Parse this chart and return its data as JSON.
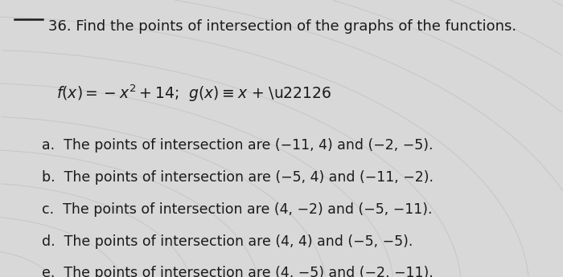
{
  "question_number": "36.",
  "question_text": " Find the points of intersection of the graphs of the functions.",
  "func_f": "$f(x) = -x^2 + 14$",
  "func_sep": ";",
  "func_g": "$g(x) \\equiv x$ + −6",
  "options": [
    "a.  The points of intersection are (−11, 4) and (−2, −5).",
    "b.  The points of intersection are (−5, 4) and (−11, −2).",
    "c.  The points of intersection are (4, −2) and (−5, −11).",
    "d.  The points of intersection are (4, 4) and (−5, −5).",
    "e.  The points of intersection are (4, −5) and (−2, −11)."
  ],
  "bg_color_light": "#e8e8e8",
  "bg_color_dark": "#c0c0c0",
  "text_color": "#1a1a1a",
  "title_fontsize": 13.0,
  "body_fontsize": 12.5,
  "func_fontsize": 13.5
}
